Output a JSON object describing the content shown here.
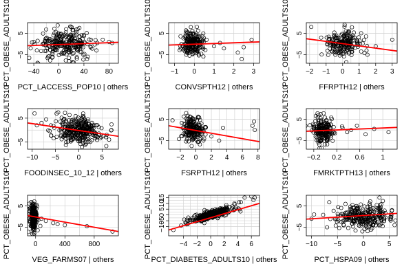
{
  "colors": {
    "points": "#000000",
    "fit_line": "#ff0000",
    "grid": "#d3d3d3"
  },
  "chart_data": [
    {
      "type": "scatter",
      "ylabel": "PCT_OBESE_ADULTS10",
      "xlabel": "PCT_LACCESS_POP10 | others",
      "xlim": [
        -50,
        95
      ],
      "ylim": [
        -9,
        10
      ],
      "xticks": [
        -40,
        0,
        40,
        80
      ],
      "yticks": [
        -5,
        5
      ],
      "grid": true,
      "fit_line": {
        "x": [
          -50,
          95
        ],
        "y": [
          -0.8,
          0.8
        ]
      },
      "points": {
        "center": [
          10,
          0
        ],
        "spread": [
          22,
          3.2
        ],
        "n": 260,
        "outliers": [
          [
            70,
            2
          ],
          [
            80,
            1
          ],
          [
            85,
            0.5
          ],
          [
            60,
            -3
          ],
          [
            -40,
            1
          ],
          [
            -45,
            -2
          ],
          [
            30,
            7
          ],
          [
            45,
            -7
          ]
        ]
      }
    },
    {
      "type": "scatter",
      "ylabel": "PCT_OBESE_ADULTS10",
      "xlabel": "CONVSPTH12 | others",
      "xlim": [
        -1.3,
        3.3
      ],
      "ylim": [
        -9,
        10
      ],
      "xticks": [
        -1,
        0,
        1,
        2,
        3
      ],
      "yticks": [
        -5,
        5
      ],
      "grid": true,
      "fit_line": {
        "x": [
          -1.3,
          3.3
        ],
        "y": [
          -0.5,
          1.0
        ]
      },
      "points": {
        "center": [
          -0.05,
          0
        ],
        "spread": [
          0.28,
          3.0
        ],
        "n": 200,
        "outliers": [
          [
            1.0,
            -1
          ],
          [
            1.3,
            0.5
          ],
          [
            1.5,
            -2
          ],
          [
            2.2,
            -4
          ],
          [
            2.4,
            -7
          ],
          [
            2.9,
            2
          ],
          [
            2.5,
            -1.5
          ]
        ]
      }
    },
    {
      "type": "scatter",
      "ylabel": "PCT_OBESE_ADULTS10",
      "xlabel": "FFRPTH12 | others",
      "xlim": [
        -2.2,
        3.3
      ],
      "ylim": [
        -9,
        10
      ],
      "xticks": [
        -2,
        -1,
        0,
        1,
        2,
        3
      ],
      "yticks": [
        -5,
        5
      ],
      "grid": true,
      "fit_line": {
        "x": [
          -2.2,
          3.3
        ],
        "y": [
          2.5,
          -3.3
        ]
      },
      "points": {
        "center": [
          0,
          0
        ],
        "spread": [
          0.5,
          3.0
        ],
        "n": 200,
        "outliers": [
          [
            -1.9,
            8
          ],
          [
            2.0,
            -1
          ],
          [
            3.0,
            2
          ],
          [
            1.5,
            -5
          ],
          [
            -1.3,
            3
          ]
        ]
      }
    },
    {
      "type": "scatter",
      "ylabel": "PCT_OBESE_ADULTS10",
      "xlabel": "FOODINSEC_10_12 | others",
      "xlim": [
        -11,
        8.5
      ],
      "ylim": [
        -8,
        9
      ],
      "xticks": [
        -10,
        -5,
        0,
        5
      ],
      "yticks": [
        -5,
        5
      ],
      "grid": true,
      "fit_line": {
        "x": [
          -11,
          8.5
        ],
        "y": [
          3.0,
          -2.6
        ]
      },
      "points": {
        "center": [
          0,
          0
        ],
        "spread": [
          2.4,
          2.8
        ],
        "n": 320,
        "outliers": [
          [
            -9.5,
            7
          ],
          [
            -9,
            2
          ],
          [
            -8,
            3
          ],
          [
            -7,
            4.5
          ],
          [
            -6,
            2
          ],
          [
            6,
            -2
          ],
          [
            6.5,
            -4
          ],
          [
            7,
            0
          ]
        ]
      }
    },
    {
      "type": "scatter",
      "ylabel": "PCT_OBESE_ADULTS10",
      "xlabel": "FSRPTH12 | others",
      "xlim": [
        -3.5,
        8.2
      ],
      "ylim": [
        -9,
        10
      ],
      "xticks": [
        -2,
        0,
        2,
        4,
        6,
        8
      ],
      "yticks": [
        -5,
        5
      ],
      "grid": true,
      "fit_line": {
        "x": [
          -3.5,
          8.2
        ],
        "y": [
          2.0,
          -5.5
        ]
      },
      "points": {
        "center": [
          -0.3,
          0.3
        ],
        "spread": [
          0.7,
          3.0
        ],
        "n": 200,
        "outliers": [
          [
            -3,
            4.5
          ],
          [
            2,
            -3
          ],
          [
            3,
            -5
          ],
          [
            3.5,
            1
          ],
          [
            7.3,
            2
          ],
          [
            7.5,
            4
          ],
          [
            7.6,
            0
          ]
        ]
      }
    },
    {
      "type": "scatter",
      "ylabel": "PCT_OBESE_ADULTS10",
      "xlabel": "FMRKTPTH13 | others",
      "xlim": [
        -0.33,
        1.25
      ],
      "ylim": [
        -9,
        10
      ],
      "xticks": [
        -0.2,
        0.2,
        0.6,
        1.0
      ],
      "yticks": [
        -5,
        5
      ],
      "grid": true,
      "fit_line": {
        "x": [
          -0.33,
          1.25
        ],
        "y": [
          -0.6,
          1.2
        ]
      },
      "points": {
        "center": [
          -0.05,
          0
        ],
        "spread": [
          0.09,
          3.0
        ],
        "n": 200,
        "outliers": [
          [
            0.3,
            1
          ],
          [
            0.38,
            -1
          ],
          [
            0.45,
            0
          ],
          [
            0.55,
            2
          ],
          [
            0.7,
            -2
          ],
          [
            0.85,
            0.5
          ],
          [
            1.1,
            -1
          ]
        ]
      }
    },
    {
      "type": "scatter",
      "ylabel": "PCT_OBESE_ADULTS10",
      "xlabel": "VEG_FARMS07 | others",
      "xlim": [
        -110,
        1130
      ],
      "ylim": [
        -9,
        10
      ],
      "xticks": [
        0,
        400,
        800
      ],
      "yticks": [
        -5,
        5
      ],
      "grid": true,
      "fit_line": {
        "x": [
          -110,
          1130
        ],
        "y": [
          0.5,
          -7
        ]
      },
      "points": {
        "center": [
          -30,
          0
        ],
        "spread": [
          25,
          3.2
        ],
        "n": 200,
        "outliers": [
          [
            80,
            -1
          ],
          [
            140,
            -2
          ],
          [
            240,
            -3
          ],
          [
            300,
            -3.5
          ],
          [
            400,
            -4
          ],
          [
            700,
            -4.5
          ],
          [
            1050,
            -7
          ]
        ]
      }
    },
    {
      "type": "scatter",
      "ylabel": "PCT_OBESE_ADULTS10",
      "xlabel": "PCT_DIABETES_ADULTS10 | others",
      "xlim": [
        -6.2,
        7.2
      ],
      "ylim": [
        -18,
        17
      ],
      "xticks": [
        -4,
        -2,
        0,
        2,
        4,
        6
      ],
      "yticks": [
        -10,
        -5,
        0,
        5,
        10,
        15
      ],
      "grid": true,
      "fit_line": {
        "x": [
          -6.2,
          7.2
        ],
        "y": [
          -13,
          10
        ]
      },
      "points": {
        "center": [
          0,
          0
        ],
        "spread": [
          1.7,
          1.8
        ],
        "n": 320,
        "slope": 1.7,
        "outliers": [
          [
            -5.5,
            -13
          ],
          [
            6,
            16
          ],
          [
            6.5,
            15
          ],
          [
            5,
            15
          ],
          [
            3.5,
            10
          ],
          [
            -3.5,
            -4
          ]
        ]
      }
    },
    {
      "type": "scatter",
      "ylabel": "PCT_OBESE_ADULTS10",
      "xlabel": "PCT_HSPA09 | others",
      "xlim": [
        -11,
        6.5
      ],
      "ylim": [
        -9,
        10
      ],
      "xticks": [
        -10,
        -5,
        0,
        5
      ],
      "yticks": [
        -5,
        5
      ],
      "grid": true,
      "fit_line": {
        "x": [
          -11,
          6.5
        ],
        "y": [
          -1.2,
          1.5
        ]
      },
      "points": {
        "center": [
          0,
          0
        ],
        "spread": [
          2.8,
          2.8
        ],
        "n": 280,
        "outliers": [
          [
            -10,
            -1
          ],
          [
            -9.5,
            1
          ],
          [
            5.5,
            3
          ],
          [
            6,
            -4
          ],
          [
            -7,
            -5
          ]
        ]
      }
    }
  ]
}
